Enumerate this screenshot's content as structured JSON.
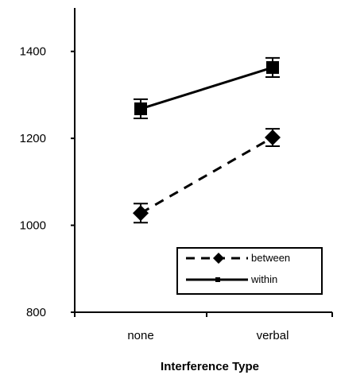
{
  "chart_data": {
    "type": "line",
    "title": "",
    "xlabel": "Interference Type",
    "ylabel": "",
    "categories": [
      "none",
      "verbal"
    ],
    "ylim": [
      800,
      1500
    ],
    "yticks": [
      800,
      1000,
      1200,
      1400
    ],
    "grid": false,
    "legend_position": "bottom-right",
    "series": [
      {
        "name": "between",
        "values": [
          1028,
          1202
        ],
        "errors": [
          22,
          20
        ],
        "marker": "diamond",
        "line_style": "dashed",
        "color": "#000000"
      },
      {
        "name": "within",
        "values": [
          1268,
          1363
        ],
        "errors": [
          22,
          22
        ],
        "marker": "square",
        "line_style": "solid",
        "color": "#000000"
      }
    ]
  }
}
